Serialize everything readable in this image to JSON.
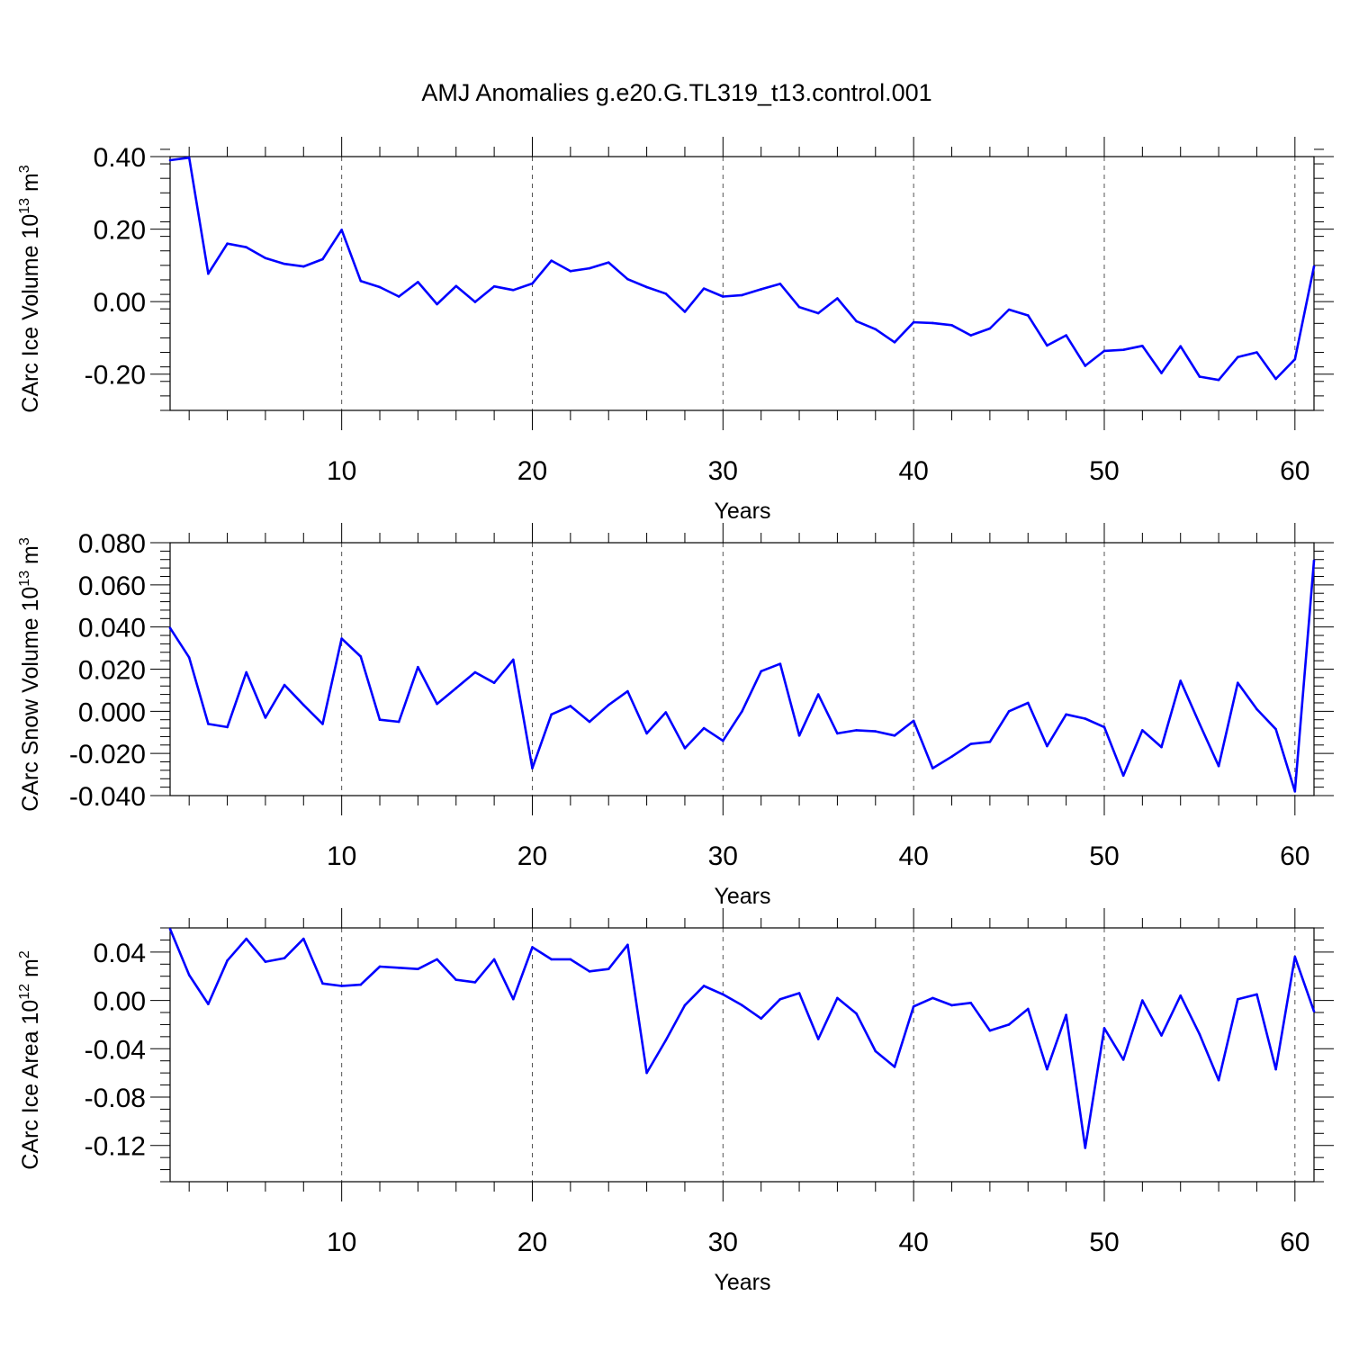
{
  "figure": {
    "title": "AMJ Anomalies g.e20.G.TL319_t13.control.001",
    "line_color": "#0000ff",
    "grid_color": "#555555"
  },
  "chart_data": [
    {
      "type": "line",
      "name": "ice-volume",
      "ylabel": "CArc Ice Volume 10",
      "ylabel_sup": "13",
      "ylabel_unit": " m",
      "ylabel_unit_sup": "3",
      "xlabel": "Years",
      "xlim": [
        1,
        61
      ],
      "ylim": [
        -0.3,
        0.4
      ],
      "yticks": [
        -0.2,
        0.0,
        0.2,
        0.4
      ],
      "ytick_labels": [
        "-0.20",
        "0.00",
        "0.20",
        "0.40"
      ],
      "yminor_step": 0.04,
      "xticks": [
        10,
        20,
        30,
        40,
        50,
        60
      ],
      "xtick_labels": [
        "10",
        "20",
        "30",
        "40",
        "50",
        "60"
      ],
      "grid": "vertical dashed at major x ticks",
      "series": [
        {
          "name": "CArc Ice Volume",
          "x": [
            1,
            2,
            3,
            4,
            5,
            6,
            7,
            8,
            9,
            10,
            11,
            12,
            13,
            14,
            15,
            16,
            17,
            18,
            19,
            20,
            21,
            22,
            23,
            24,
            25,
            26,
            27,
            28,
            29,
            30,
            31,
            32,
            33,
            34,
            35,
            36,
            37,
            38,
            39,
            40,
            41,
            42,
            43,
            44,
            45,
            46,
            47,
            48,
            49,
            50,
            51,
            52,
            53,
            54,
            55,
            56,
            57,
            58,
            59,
            60,
            61
          ],
          "values": [
            0.39,
            0.397,
            0.077,
            0.16,
            0.15,
            0.12,
            0.104,
            0.097,
            0.117,
            0.198,
            0.057,
            0.04,
            0.014,
            0.054,
            -0.007,
            0.043,
            -0.001,
            0.042,
            0.032,
            0.05,
            0.113,
            0.084,
            0.092,
            0.108,
            0.062,
            0.04,
            0.022,
            -0.028,
            0.036,
            0.014,
            0.018,
            0.034,
            0.049,
            -0.015,
            -0.032,
            0.009,
            -0.054,
            -0.076,
            -0.112,
            -0.057,
            -0.059,
            -0.065,
            -0.093,
            -0.074,
            -0.022,
            -0.038,
            -0.121,
            -0.093,
            -0.177,
            -0.136,
            -0.133,
            -0.122,
            -0.197,
            -0.123,
            -0.207,
            -0.216,
            -0.153,
            -0.14,
            -0.213,
            -0.159,
            0.097
          ]
        }
      ]
    },
    {
      "type": "line",
      "name": "snow-volume",
      "ylabel": "CArc Snow Volume 10",
      "ylabel_sup": "13",
      "ylabel_unit": " m",
      "ylabel_unit_sup": "3",
      "xlabel": "Years",
      "xlim": [
        1,
        61
      ],
      "ylim": [
        -0.04,
        0.08
      ],
      "yticks": [
        -0.04,
        -0.02,
        0.0,
        0.02,
        0.04,
        0.06,
        0.08
      ],
      "ytick_labels": [
        "-0.040",
        "-0.020",
        "0.000",
        "0.020",
        "0.040",
        "0.060",
        "0.080"
      ],
      "yminor_step": 0.004,
      "xticks": [
        10,
        20,
        30,
        40,
        50,
        60
      ],
      "xtick_labels": [
        "10",
        "20",
        "30",
        "40",
        "50",
        "60"
      ],
      "grid": "vertical dashed at major x ticks",
      "series": [
        {
          "name": "CArc Snow Volume",
          "x": [
            1,
            2,
            3,
            4,
            5,
            6,
            7,
            8,
            9,
            10,
            11,
            12,
            13,
            14,
            15,
            16,
            17,
            18,
            19,
            20,
            21,
            22,
            23,
            24,
            25,
            26,
            27,
            28,
            29,
            30,
            31,
            32,
            33,
            34,
            35,
            36,
            37,
            38,
            39,
            40,
            41,
            42,
            43,
            44,
            45,
            46,
            47,
            48,
            49,
            50,
            51,
            52,
            53,
            54,
            55,
            56,
            57,
            58,
            59,
            60,
            61
          ],
          "values": [
            0.0395,
            0.0255,
            -0.006,
            -0.0075,
            0.0185,
            -0.003,
            0.0125,
            0.003,
            -0.006,
            0.0345,
            0.026,
            -0.004,
            -0.005,
            0.021,
            0.0035,
            0.011,
            0.0185,
            0.0135,
            0.0245,
            -0.027,
            -0.0015,
            0.0025,
            -0.005,
            0.003,
            0.0095,
            -0.0105,
            -0.0005,
            -0.0175,
            -0.008,
            -0.014,
            0.0,
            0.019,
            0.0225,
            -0.0115,
            0.008,
            -0.0105,
            -0.009,
            -0.0095,
            -0.0115,
            -0.0045,
            -0.027,
            -0.0215,
            -0.0155,
            -0.0145,
            0.0,
            0.004,
            -0.0165,
            -0.0015,
            -0.0035,
            -0.0075,
            -0.0305,
            -0.009,
            -0.017,
            0.0145,
            -0.006,
            -0.026,
            0.0135,
            0.001,
            -0.0085,
            -0.038,
            0.0715
          ]
        }
      ]
    },
    {
      "type": "line",
      "name": "ice-area",
      "ylabel": "CArc Ice Area 10",
      "ylabel_sup": "12",
      "ylabel_unit": " m",
      "ylabel_unit_sup": "2",
      "xlabel": "Years",
      "xlim": [
        1,
        61
      ],
      "ylim": [
        -0.15,
        0.06
      ],
      "yticks": [
        -0.12,
        -0.08,
        -0.04,
        0.0,
        0.04
      ],
      "ytick_labels": [
        "-0.12",
        "-0.08",
        "-0.04",
        "0.00",
        "0.04"
      ],
      "yminor_step": 0.01,
      "xticks": [
        10,
        20,
        30,
        40,
        50,
        60
      ],
      "xtick_labels": [
        "10",
        "20",
        "30",
        "40",
        "50",
        "60"
      ],
      "grid": "vertical dashed at major x ticks",
      "series": [
        {
          "name": "CArc Ice Area",
          "x": [
            1,
            2,
            3,
            4,
            5,
            6,
            7,
            8,
            9,
            10,
            11,
            12,
            13,
            14,
            15,
            16,
            17,
            18,
            19,
            20,
            21,
            22,
            23,
            24,
            25,
            26,
            27,
            28,
            29,
            30,
            31,
            32,
            33,
            34,
            35,
            36,
            37,
            38,
            39,
            40,
            41,
            42,
            43,
            44,
            45,
            46,
            47,
            48,
            49,
            50,
            51,
            52,
            53,
            54,
            55,
            56,
            57,
            58,
            59,
            60,
            61
          ],
          "values": [
            0.059,
            0.021,
            -0.003,
            0.033,
            0.051,
            0.032,
            0.035,
            0.051,
            0.014,
            0.012,
            0.013,
            0.028,
            0.027,
            0.026,
            0.034,
            0.017,
            0.015,
            0.034,
            0.001,
            0.044,
            0.034,
            0.034,
            0.024,
            0.026,
            0.046,
            -0.06,
            -0.033,
            -0.004,
            0.012,
            0.005,
            -0.004,
            -0.015,
            0.001,
            0.006,
            -0.032,
            0.002,
            -0.011,
            -0.042,
            -0.055,
            -0.005,
            0.002,
            -0.004,
            -0.002,
            -0.025,
            -0.02,
            -0.007,
            -0.057,
            -0.012,
            -0.122,
            -0.023,
            -0.049,
            0.0,
            -0.029,
            0.004,
            -0.028,
            -0.066,
            0.001,
            0.005,
            -0.057,
            0.036,
            -0.009
          ]
        }
      ]
    }
  ]
}
